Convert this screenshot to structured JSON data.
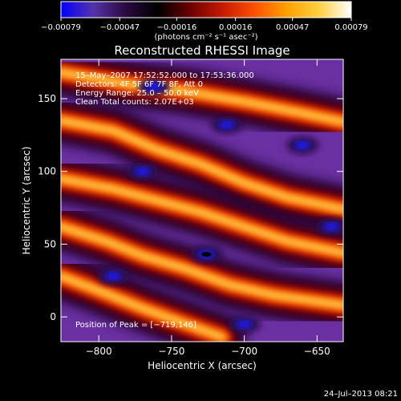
{
  "colors": {
    "background": "#000000",
    "text": "#ffffff",
    "frame": "#ffffff"
  },
  "chart_data": {
    "type": "heatmap",
    "title": "Reconstructed RHESSI Image",
    "xlabel": "Heliocentric X (arcsec)",
    "ylabel": "Heliocentric Y (arcsec)",
    "xlim": [
      -826,
      -632
    ],
    "ylim": [
      -17,
      177
    ],
    "x_ticks": [
      -800,
      -750,
      -700,
      -650
    ],
    "x_tick_labels": [
      "−800",
      "−750",
      "−700",
      "−650"
    ],
    "y_ticks": [
      0,
      50,
      100,
      150
    ],
    "y_tick_labels": [
      "0",
      "50",
      "100",
      "150"
    ],
    "colorbar": {
      "range": [
        -0.00079,
        0.00079
      ],
      "ticks": [
        -0.00079,
        -0.00047,
        -0.00016,
        0.00016,
        0.00047,
        0.00079
      ],
      "tick_labels": [
        "−0.00079",
        "−0.00047",
        "−0.00016",
        "0.00016",
        "0.00047",
        "0.00079"
      ],
      "units": "(photons cm⁻² s⁻¹ asec⁻²)",
      "colormap": [
        "#0000ff",
        "#5533aa",
        "#2a0a40",
        "#000000",
        "#6a0000",
        "#c41a00",
        "#ff5000",
        "#ffa000",
        "#ffd040",
        "#ffffff"
      ]
    },
    "annotations": [
      "15–May–2007 17:52:52.000 to 17:53:36.000",
      "Detectors: 4F 5F 6F 7F 8F, Att 0",
      "Energy Range: 25.0 – 50.0 keV",
      "Clean     Total counts: 2.07E+03"
    ],
    "peak_label": "Position of Peak = [−719,146]",
    "peak": {
      "x": -719,
      "y": 146
    },
    "pattern": {
      "direction_deg": -24,
      "bright_ridges": [
        {
          "name": "ridge-top",
          "points": [
            [
              -826,
              168
            ],
            [
              -780,
              160
            ],
            [
              -740,
              155
            ],
            [
              -700,
              148
            ],
            [
              -660,
              140
            ],
            [
              -632,
              134
            ]
          ]
        },
        {
          "name": "ridge-upper",
          "points": [
            [
              -826,
              135
            ],
            [
              -790,
              128
            ],
            [
              -760,
              115
            ],
            [
              -730,
              105
            ],
            [
              -700,
              92
            ],
            [
              -670,
              82
            ],
            [
              -632,
              74
            ]
          ]
        },
        {
          "name": "ridge-middle",
          "points": [
            [
              -826,
              95
            ],
            [
              -790,
              88
            ],
            [
              -760,
              80
            ],
            [
              -730,
              72
            ],
            [
              -700,
              62
            ],
            [
              -670,
              52
            ],
            [
              -632,
              44
            ]
          ]
        },
        {
          "name": "ridge-lower",
          "points": [
            [
              -826,
              62
            ],
            [
              -795,
              52
            ],
            [
              -770,
              42
            ],
            [
              -740,
              33
            ],
            [
              -710,
              22
            ],
            [
              -680,
              15
            ],
            [
              -632,
              8
            ]
          ]
        },
        {
          "name": "ridge-bottom",
          "points": [
            [
              -826,
              28
            ],
            [
              -800,
              18
            ],
            [
              -770,
              6
            ],
            [
              -740,
              -5
            ],
            [
              -715,
              -14
            ]
          ]
        }
      ],
      "dark_holes": [
        {
          "x": -726,
          "y": 43
        },
        {
          "x": -762,
          "y": 158
        },
        {
          "x": -712,
          "y": 132
        },
        {
          "x": -660,
          "y": 118
        },
        {
          "x": -770,
          "y": 100
        },
        {
          "x": -640,
          "y": 62
        },
        {
          "x": -790,
          "y": 28
        },
        {
          "x": -700,
          "y": -5
        }
      ]
    }
  },
  "footer": {
    "date": "24–Jul–2013 08:21"
  }
}
